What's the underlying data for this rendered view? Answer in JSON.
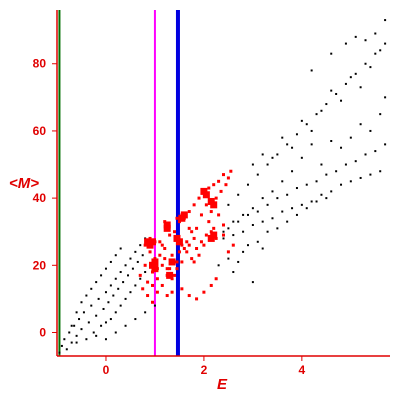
{
  "chart_data": {
    "type": "scatter",
    "xlabel": "E",
    "ylabel": "<M>",
    "xlim": [
      -1.0,
      5.8
    ],
    "ylim": [
      -7,
      96
    ],
    "x_ticks": [
      "0",
      "2",
      "4"
    ],
    "x_tick_values": [
      0,
      2,
      4
    ],
    "y_ticks": [
      "0",
      "20",
      "40",
      "60",
      "80"
    ],
    "y_tick_values": [
      0,
      20,
      40,
      60,
      80
    ],
    "grid": false,
    "colors": {
      "axes": "#e00000",
      "black_points": "#000000",
      "red_points": "#ff0000",
      "line_green": "#007000",
      "line_magenta": "#ff00ff",
      "line_blue": "#0000e0"
    },
    "vertical_lines": [
      {
        "x": -0.95,
        "color": "#007000"
      },
      {
        "x": 1.0,
        "color": "#ff00ff"
      },
      {
        "x": 1.47,
        "color": "#0000e0"
      }
    ],
    "series": [
      {
        "kind": "black_points",
        "points": [
          [
            -0.95,
            -6
          ],
          [
            -0.9,
            -4
          ],
          [
            -0.85,
            -2
          ],
          [
            -0.8,
            -5
          ],
          [
            -0.75,
            0
          ],
          [
            -0.7,
            -3
          ],
          [
            -0.65,
            2
          ],
          [
            -0.6,
            -1
          ],
          [
            -0.55,
            4
          ],
          [
            -0.5,
            1
          ],
          [
            -0.45,
            6
          ],
          [
            -0.4,
            -2
          ],
          [
            -0.35,
            3
          ],
          [
            -0.3,
            8
          ],
          [
            -0.25,
            0
          ],
          [
            -0.2,
            5
          ],
          [
            -0.15,
            10
          ],
          [
            -0.1,
            2
          ],
          [
            -0.05,
            7
          ],
          [
            0.0,
            12
          ],
          [
            0.0,
            3
          ],
          [
            0.05,
            9
          ],
          [
            0.1,
            14
          ],
          [
            0.1,
            4
          ],
          [
            0.15,
            11
          ],
          [
            0.2,
            16
          ],
          [
            0.2,
            6
          ],
          [
            0.25,
            13
          ],
          [
            0.3,
            18
          ],
          [
            0.3,
            8
          ],
          [
            0.35,
            15
          ],
          [
            0.4,
            20
          ],
          [
            0.4,
            10
          ],
          [
            0.45,
            17
          ],
          [
            0.5,
            22
          ],
          [
            0.5,
            12
          ],
          [
            0.55,
            19
          ],
          [
            0.6,
            24
          ],
          [
            0.6,
            14
          ],
          [
            0.65,
            21
          ],
          [
            0.7,
            26
          ],
          [
            0.7,
            16
          ],
          [
            0.75,
            23
          ],
          [
            0.8,
            28
          ],
          [
            0.8,
            18
          ],
          [
            -0.6,
            6
          ],
          [
            -0.5,
            9
          ],
          [
            -0.4,
            11
          ],
          [
            -0.3,
            13
          ],
          [
            -0.2,
            15
          ],
          [
            -0.1,
            17
          ],
          [
            0.0,
            19
          ],
          [
            0.1,
            21
          ],
          [
            0.2,
            23
          ],
          [
            0.3,
            25
          ],
          [
            -0.7,
            2
          ],
          [
            -0.6,
            -3
          ],
          [
            -0.2,
            -1
          ],
          [
            0.0,
            -2
          ],
          [
            0.2,
            0
          ],
          [
            0.4,
            2
          ],
          [
            0.6,
            4
          ],
          [
            0.8,
            6
          ],
          [
            1.0,
            8
          ],
          [
            2.4,
            28
          ],
          [
            2.5,
            31
          ],
          [
            2.6,
            29
          ],
          [
            2.7,
            33
          ],
          [
            2.8,
            30
          ],
          [
            2.9,
            35
          ],
          [
            3.0,
            32
          ],
          [
            3.1,
            36
          ],
          [
            3.2,
            33
          ],
          [
            3.3,
            38
          ],
          [
            3.4,
            34
          ],
          [
            3.5,
            40
          ],
          [
            3.6,
            36
          ],
          [
            3.7,
            41
          ],
          [
            3.8,
            37
          ],
          [
            3.9,
            43
          ],
          [
            4.0,
            38
          ],
          [
            4.1,
            44
          ],
          [
            4.2,
            39
          ],
          [
            4.3,
            45
          ],
          [
            4.4,
            41
          ],
          [
            4.5,
            47
          ],
          [
            4.6,
            42
          ],
          [
            4.7,
            48
          ],
          [
            4.8,
            44
          ],
          [
            4.9,
            50
          ],
          [
            5.0,
            45
          ],
          [
            5.1,
            51
          ],
          [
            5.2,
            46
          ],
          [
            5.3,
            53
          ],
          [
            5.4,
            47
          ],
          [
            5.5,
            54
          ],
          [
            5.6,
            48
          ],
          [
            5.7,
            56
          ],
          [
            2.5,
            38
          ],
          [
            2.7,
            41
          ],
          [
            2.9,
            44
          ],
          [
            3.1,
            47
          ],
          [
            3.3,
            50
          ],
          [
            3.5,
            53
          ],
          [
            3.7,
            56
          ],
          [
            3.9,
            59
          ],
          [
            4.1,
            62
          ],
          [
            4.3,
            65
          ],
          [
            4.5,
            68
          ],
          [
            4.7,
            71
          ],
          [
            4.9,
            74
          ],
          [
            5.1,
            77
          ],
          [
            5.3,
            80
          ],
          [
            5.5,
            83
          ],
          [
            5.7,
            86
          ],
          [
            3.0,
            50
          ],
          [
            3.2,
            53
          ],
          [
            3.4,
            52
          ],
          [
            3.6,
            58
          ],
          [
            3.8,
            55
          ],
          [
            4.0,
            63
          ],
          [
            4.2,
            60
          ],
          [
            4.4,
            66
          ],
          [
            4.6,
            72
          ],
          [
            4.8,
            69
          ],
          [
            5.0,
            76
          ],
          [
            5.2,
            73
          ],
          [
            5.4,
            79
          ],
          [
            5.6,
            84
          ],
          [
            4.2,
            78
          ],
          [
            4.6,
            83
          ],
          [
            4.9,
            86
          ],
          [
            5.1,
            88
          ],
          [
            5.3,
            87
          ],
          [
            5.5,
            89
          ],
          [
            5.7,
            93
          ],
          [
            2.3,
            20
          ],
          [
            2.5,
            22
          ],
          [
            2.7,
            21
          ],
          [
            2.9,
            26
          ],
          [
            3.1,
            27
          ],
          [
            3.3,
            30
          ],
          [
            3.5,
            31
          ],
          [
            3.7,
            33
          ],
          [
            3.9,
            35
          ],
          [
            4.1,
            37
          ],
          [
            4.3,
            39
          ],
          [
            4.5,
            40
          ],
          [
            2.6,
            18
          ],
          [
            2.8,
            24
          ],
          [
            3.0,
            15
          ],
          [
            3.2,
            25
          ],
          [
            4.8,
            55
          ],
          [
            5.0,
            58
          ],
          [
            5.2,
            62
          ],
          [
            5.4,
            60
          ],
          [
            5.6,
            65
          ],
          [
            5.7,
            70
          ],
          [
            4.4,
            50
          ],
          [
            4.6,
            57
          ],
          [
            3.6,
            45
          ],
          [
            3.8,
            48
          ],
          [
            4.0,
            52
          ],
          [
            4.2,
            56
          ],
          [
            3.4,
            42
          ],
          [
            3.2,
            40
          ],
          [
            3.0,
            37
          ],
          [
            2.8,
            35
          ],
          [
            2.6,
            33
          ],
          [
            2.4,
            30
          ]
        ]
      },
      {
        "kind": "red_points",
        "points": [
          [
            0.7,
            17
          ],
          [
            0.75,
            13
          ],
          [
            0.8,
            20
          ],
          [
            0.85,
            15
          ],
          [
            0.9,
            24
          ],
          [
            0.95,
            18
          ],
          [
            1.0,
            22
          ],
          [
            1.05,
            16
          ],
          [
            1.1,
            27
          ],
          [
            1.15,
            20
          ],
          [
            1.2,
            25
          ],
          [
            1.25,
            19
          ],
          [
            1.3,
            29
          ],
          [
            1.35,
            23
          ],
          [
            1.4,
            30
          ],
          [
            1.45,
            21
          ],
          [
            1.5,
            33
          ],
          [
            1.55,
            26
          ],
          [
            1.6,
            34
          ],
          [
            1.65,
            27
          ],
          [
            1.7,
            36
          ],
          [
            1.75,
            30
          ],
          [
            1.8,
            38
          ],
          [
            1.85,
            31
          ],
          [
            1.9,
            40
          ],
          [
            1.95,
            35
          ],
          [
            2.0,
            42
          ],
          [
            2.05,
            38
          ],
          [
            2.1,
            43
          ],
          [
            2.15,
            36
          ],
          [
            2.2,
            44
          ],
          [
            2.25,
            40
          ],
          [
            2.3,
            45
          ],
          [
            2.35,
            42
          ],
          [
            2.4,
            47
          ],
          [
            2.45,
            44
          ],
          [
            2.5,
            46
          ],
          [
            2.55,
            48
          ],
          [
            0.85,
            11
          ],
          [
            0.95,
            9
          ],
          [
            1.05,
            12
          ],
          [
            1.15,
            14
          ],
          [
            1.25,
            17
          ],
          [
            1.35,
            16
          ],
          [
            1.45,
            19
          ],
          [
            1.55,
            21
          ],
          [
            1.65,
            24
          ],
          [
            1.75,
            22
          ],
          [
            1.85,
            25
          ],
          [
            1.95,
            27
          ],
          [
            2.05,
            29
          ],
          [
            2.15,
            30
          ],
          [
            2.25,
            28
          ],
          [
            0.8,
            26
          ],
          [
            0.9,
            28
          ],
          [
            1.0,
            27
          ],
          [
            1.1,
            23
          ],
          [
            1.2,
            22
          ],
          [
            1.3,
            19
          ],
          [
            1.4,
            17
          ],
          [
            1.5,
            24
          ],
          [
            1.6,
            25
          ],
          [
            1.7,
            26
          ],
          [
            1.8,
            21
          ],
          [
            1.9,
            23
          ],
          [
            2.0,
            26
          ],
          [
            2.1,
            33
          ],
          [
            2.2,
            31
          ],
          [
            2.3,
            35
          ],
          [
            2.4,
            32
          ],
          [
            1.25,
            11
          ],
          [
            1.35,
            12
          ],
          [
            1.55,
            13
          ],
          [
            1.7,
            11
          ],
          [
            1.85,
            10
          ],
          [
            2.0,
            12
          ],
          [
            2.15,
            14
          ],
          [
            2.25,
            16
          ],
          [
            1.2,
            33
          ],
          [
            1.25,
            32
          ],
          [
            1.45,
            34
          ],
          [
            1.55,
            35
          ],
          [
            1.7,
            31
          ],
          [
            1.8,
            28
          ],
          [
            0.95,
            14
          ],
          [
            1.05,
            19
          ],
          [
            1.15,
            26
          ],
          [
            2.6,
            26
          ],
          [
            2.5,
            24
          ],
          [
            2.4,
            29
          ]
        ]
      },
      {
        "kind": "red_points_large",
        "points": [
          [
            0.85,
            27
          ],
          [
            0.9,
            26
          ],
          [
            0.95,
            27
          ],
          [
            1.0,
            21
          ],
          [
            0.95,
            20
          ],
          [
            1.0,
            19
          ],
          [
            1.25,
            32
          ],
          [
            1.25,
            31
          ],
          [
            1.6,
            35
          ],
          [
            1.55,
            34
          ],
          [
            2.0,
            42
          ],
          [
            2.05,
            41
          ],
          [
            2.15,
            39
          ],
          [
            2.2,
            38
          ],
          [
            2.2,
            29
          ],
          [
            2.15,
            28
          ],
          [
            1.45,
            28
          ],
          [
            1.5,
            27
          ],
          [
            1.35,
            21
          ],
          [
            1.3,
            17
          ]
        ]
      }
    ]
  }
}
